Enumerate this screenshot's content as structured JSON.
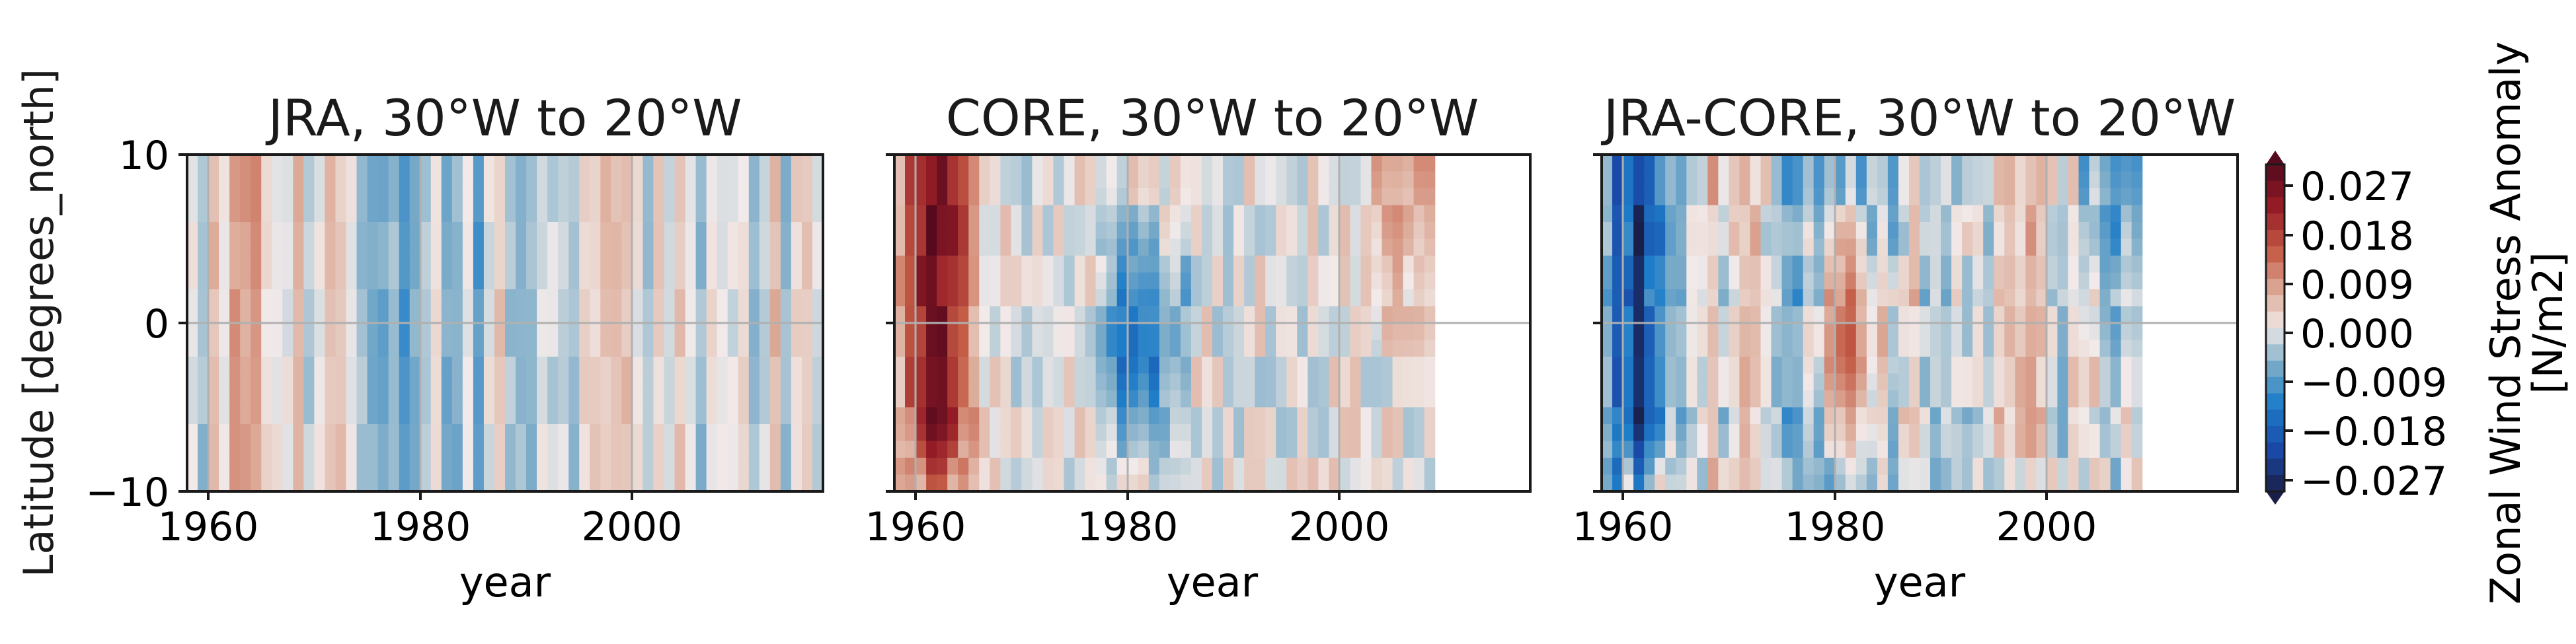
{
  "figure": {
    "ylabel": "Latitude [degrees_north]",
    "colorbar_label_line1": "Zonal Wind Stress Anomaly",
    "colorbar_label_line2": "[N/m2]",
    "colormap": "balance (diverging blue-white-red)",
    "colors": {
      "neg_strong": "#1f2f78",
      "neg_mid": "#1a6fc4",
      "neg_weak": "#c9d6de",
      "neutral": "#f2eaea",
      "pos_weak": "#e5c6bc",
      "pos_mid": "#c0563f",
      "pos_strong": "#6f0f1e"
    }
  },
  "chart_data": [
    {
      "type": "heatmap",
      "title": "JRA, 30°W to 20°W",
      "xlabel": "year",
      "ylabel": "Latitude [degrees_north]",
      "xlim": [
        1958,
        2018
      ],
      "ylim": [
        -10,
        10
      ],
      "xticks": [
        "1960",
        "1980",
        "2000"
      ],
      "yticks": [
        "10",
        "0",
        "−10"
      ],
      "data_extent_years": [
        1958,
        2018
      ],
      "grid": true,
      "approx_value_range": [
        -0.013,
        0.013
      ]
    },
    {
      "type": "heatmap",
      "title": "CORE, 30°W to 20°W",
      "xlabel": "year",
      "xlim": [
        1958,
        2018
      ],
      "ylim": [
        -10,
        10
      ],
      "xticks": [
        "1960",
        "1980",
        "2000"
      ],
      "data_extent_years": [
        1958,
        2009
      ],
      "grid": true,
      "approx_value_range": [
        -0.02,
        0.029
      ]
    },
    {
      "type": "heatmap",
      "title": "JRA-CORE, 30°W to 20°W",
      "xlabel": "year",
      "xlim": [
        1958,
        2018
      ],
      "ylim": [
        -10,
        10
      ],
      "xticks": [
        "1960",
        "1980",
        "2000"
      ],
      "data_extent_years": [
        1958,
        2009
      ],
      "grid": true,
      "approx_value_range": [
        -0.022,
        0.01
      ]
    }
  ],
  "colorbar": {
    "ticks": [
      "0.027",
      "0.018",
      "0.009",
      "0.000",
      "−0.009",
      "−0.018",
      "−0.027"
    ],
    "tick_values": [
      0.027,
      0.018,
      0.009,
      0.0,
      -0.009,
      -0.018,
      -0.027
    ],
    "range": [
      -0.03,
      0.03
    ],
    "extend": "both"
  }
}
